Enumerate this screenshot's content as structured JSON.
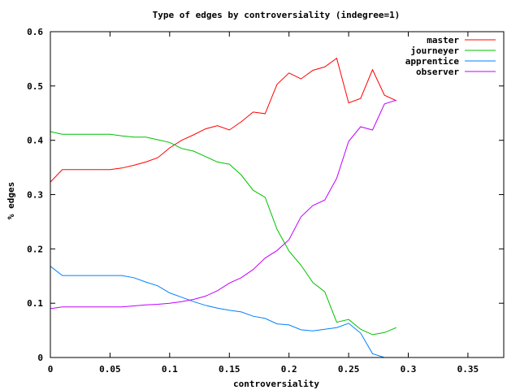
{
  "chart_data": {
    "type": "line",
    "title": "Type of edges by controversiality (indegree=1)",
    "xlabel": "controversiality",
    "ylabel": "% edges",
    "xlim": [
      0,
      0.38
    ],
    "ylim": [
      0,
      0.6
    ],
    "x_ticks": [
      0,
      0.05,
      0.1,
      0.15,
      0.2,
      0.25,
      0.3,
      0.35
    ],
    "x_tick_labels": [
      "0",
      "0.05",
      "0.1",
      "0.15",
      "0.2",
      "0.25",
      "0.3",
      "0.35"
    ],
    "y_ticks": [
      0,
      0.1,
      0.2,
      0.3,
      0.4,
      0.5,
      0.6
    ],
    "y_tick_labels": [
      "0",
      "0.1",
      "0.2",
      "0.3",
      "0.4",
      "0.5",
      "0.6"
    ],
    "grid": false,
    "legend_position": "top-right",
    "series": [
      {
        "name": "master",
        "color": "#ff0000",
        "x": [
          0,
          0.01,
          0.02,
          0.03,
          0.04,
          0.05,
          0.06,
          0.07,
          0.08,
          0.09,
          0.1,
          0.11,
          0.12,
          0.13,
          0.14,
          0.15,
          0.16,
          0.17,
          0.18,
          0.19,
          0.2,
          0.21,
          0.22,
          0.23,
          0.24,
          0.25,
          0.26,
          0.27,
          0.28,
          0.29
        ],
        "y": [
          0.323,
          0.346,
          0.346,
          0.346,
          0.346,
          0.346,
          0.349,
          0.354,
          0.36,
          0.368,
          0.386,
          0.4,
          0.41,
          0.421,
          0.427,
          0.419,
          0.434,
          0.452,
          0.449,
          0.503,
          0.524,
          0.513,
          0.529,
          0.535,
          0.551,
          0.469,
          0.477,
          0.53,
          0.483,
          0.473
        ]
      },
      {
        "name": "journeyer",
        "color": "#00c000",
        "x": [
          0,
          0.01,
          0.02,
          0.03,
          0.04,
          0.05,
          0.06,
          0.07,
          0.08,
          0.09,
          0.1,
          0.11,
          0.12,
          0.13,
          0.14,
          0.15,
          0.16,
          0.17,
          0.18,
          0.19,
          0.2,
          0.21,
          0.22,
          0.23,
          0.24,
          0.25,
          0.26,
          0.27,
          0.28,
          0.29
        ],
        "y": [
          0.416,
          0.411,
          0.411,
          0.411,
          0.411,
          0.411,
          0.408,
          0.406,
          0.406,
          0.401,
          0.396,
          0.385,
          0.38,
          0.37,
          0.36,
          0.356,
          0.336,
          0.308,
          0.295,
          0.236,
          0.196,
          0.17,
          0.138,
          0.121,
          0.065,
          0.07,
          0.052,
          0.042,
          0.046,
          0.055
        ]
      },
      {
        "name": "apprentice",
        "color": "#0080ff",
        "x": [
          0,
          0.01,
          0.02,
          0.03,
          0.04,
          0.05,
          0.06,
          0.07,
          0.08,
          0.09,
          0.1,
          0.11,
          0.12,
          0.13,
          0.14,
          0.15,
          0.16,
          0.17,
          0.18,
          0.19,
          0.2,
          0.21,
          0.22,
          0.23,
          0.24,
          0.25,
          0.26,
          0.27,
          0.28
        ],
        "y": [
          0.168,
          0.151,
          0.151,
          0.151,
          0.151,
          0.151,
          0.151,
          0.147,
          0.139,
          0.132,
          0.119,
          0.111,
          0.103,
          0.096,
          0.091,
          0.087,
          0.084,
          0.076,
          0.072,
          0.062,
          0.06,
          0.051,
          0.049,
          0.052,
          0.055,
          0.063,
          0.045,
          0.007,
          0
        ]
      },
      {
        "name": "observer",
        "color": "#c000ff",
        "x": [
          0,
          0.01,
          0.02,
          0.03,
          0.04,
          0.05,
          0.06,
          0.07,
          0.08,
          0.09,
          0.1,
          0.11,
          0.12,
          0.13,
          0.14,
          0.15,
          0.16,
          0.17,
          0.18,
          0.19,
          0.2,
          0.21,
          0.22,
          0.23,
          0.24,
          0.25,
          0.26,
          0.27,
          0.28,
          0.29
        ],
        "y": [
          0.09,
          0.093,
          0.093,
          0.093,
          0.093,
          0.093,
          0.093,
          0.095,
          0.097,
          0.098,
          0.1,
          0.103,
          0.107,
          0.113,
          0.123,
          0.137,
          0.147,
          0.162,
          0.183,
          0.197,
          0.217,
          0.259,
          0.28,
          0.29,
          0.33,
          0.398,
          0.425,
          0.419,
          0.467,
          0.474
        ]
      }
    ]
  }
}
